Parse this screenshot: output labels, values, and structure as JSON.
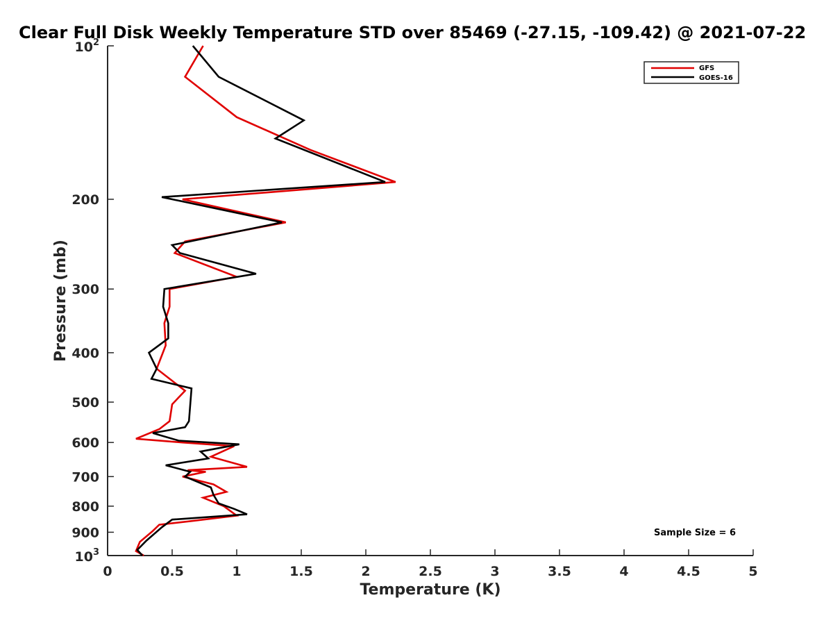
{
  "chart_data": {
    "type": "line",
    "title": "Clear Full Disk Weekly Temperature STD over 85469 (-27.15, -109.42) @ 2021-07-22",
    "xlabel": "Temperature (K)",
    "ylabel": "Pressure (mb)",
    "xlim": [
      0,
      5
    ],
    "ylim": [
      100,
      1000
    ],
    "y_scale": "log",
    "y_reversed": true,
    "grid": false,
    "legend_position": "top-right",
    "x_ticks": [
      0,
      0.5,
      1,
      1.5,
      2,
      2.5,
      3,
      3.5,
      4,
      4.5,
      5
    ],
    "x_tick_labels": [
      "0",
      "0.5",
      "1",
      "1.5",
      "2",
      "2.5",
      "3",
      "3.5",
      "4",
      "4.5",
      "5"
    ],
    "y_ticks": [
      200,
      300,
      400,
      500,
      600,
      700,
      800,
      900
    ],
    "y_tick_labels": [
      "200",
      "300",
      "400",
      "500",
      "600",
      "700",
      "800",
      "900"
    ],
    "y_decade_ticks": [
      {
        "value": 100,
        "base": "10",
        "exp": "2"
      },
      {
        "value": 1000,
        "base": "10",
        "exp": "3"
      }
    ],
    "annotation": "Sample Size = 6",
    "series": [
      {
        "name": "GFS",
        "color": "#e00000",
        "x": [
          0.74,
          0.6,
          1.0,
          1.57,
          2.23,
          0.58,
          1.38,
          0.6,
          0.52,
          1.0,
          0.48,
          0.48,
          0.44,
          0.45,
          0.38,
          0.6,
          0.5,
          0.48,
          0.4,
          0.22,
          0.58,
          0.98,
          0.8,
          1.08,
          0.62,
          0.76,
          0.58,
          0.82,
          0.92,
          0.74,
          0.9,
          1.0,
          0.66,
          0.4,
          0.35,
          0.25,
          0.22,
          0.28
        ],
        "y": [
          100,
          115,
          138,
          160,
          185,
          200,
          222,
          242,
          255,
          284,
          300,
          325,
          350,
          387,
          430,
          475,
          505,
          545,
          565,
          590,
          600,
          610,
          640,
          670,
          680,
          685,
          700,
          725,
          750,
          770,
          800,
          835,
          855,
          870,
          895,
          940,
          980,
          1000
        ]
      },
      {
        "name": "GOES-16",
        "color": "#000000",
        "x": [
          0.66,
          0.86,
          1.52,
          1.3,
          2.15,
          0.42,
          1.35,
          0.5,
          0.56,
          1.15,
          0.44,
          0.43,
          0.47,
          0.47,
          0.32,
          0.38,
          0.34,
          0.65,
          0.63,
          0.6,
          0.35,
          0.55,
          1.02,
          0.72,
          0.78,
          0.45,
          0.64,
          0.6,
          0.8,
          0.82,
          0.86,
          0.98,
          1.08,
          0.5,
          0.42,
          0.3,
          0.23,
          0.27
        ],
        "y": [
          100,
          115,
          140,
          152,
          185,
          198,
          222,
          246,
          255,
          280,
          300,
          325,
          350,
          375,
          400,
          430,
          450,
          470,
          545,
          560,
          575,
          595,
          605,
          625,
          645,
          665,
          685,
          700,
          735,
          760,
          790,
          810,
          830,
          850,
          880,
          935,
          975,
          1000
        ]
      }
    ]
  }
}
